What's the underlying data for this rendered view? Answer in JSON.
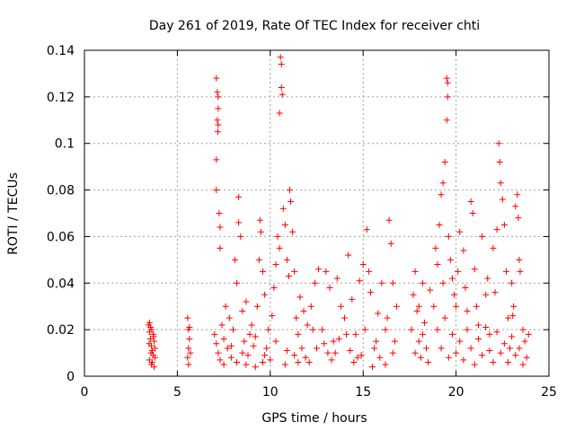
{
  "chart_data": {
    "type": "scatter",
    "title": "Day 261 of 2019, Rate Of TEC Index for receiver chti",
    "xlabel": "GPS time / hours",
    "ylabel": "ROTI / TECUs",
    "xlim": [
      0,
      25
    ],
    "ylim": [
      0,
      0.14
    ],
    "x_ticks": [
      0,
      5,
      10,
      15,
      20,
      25
    ],
    "x_tick_labels": [
      "0",
      "5",
      "10",
      "15",
      "20",
      "25"
    ],
    "y_ticks": [
      0,
      0.02,
      0.04,
      0.06,
      0.08,
      0.1,
      0.12,
      0.14
    ],
    "y_tick_labels": [
      "0",
      "0.02",
      "0.04",
      "0.06",
      "0.08",
      "0.1",
      "0.12",
      "0.14"
    ],
    "grid": true,
    "marker": "+",
    "color": "#ff0000",
    "series": [
      {
        "name": "ROTI",
        "points": [
          [
            3.45,
            0.022
          ],
          [
            3.5,
            0.019
          ],
          [
            3.55,
            0.016
          ],
          [
            3.6,
            0.013
          ],
          [
            3.65,
            0.011
          ],
          [
            3.7,
            0.009
          ],
          [
            3.5,
            0.007
          ],
          [
            3.6,
            0.005
          ],
          [
            3.55,
            0.021
          ],
          [
            3.7,
            0.018
          ],
          [
            3.75,
            0.015
          ],
          [
            3.8,
            0.012
          ],
          [
            3.8,
            0.008
          ],
          [
            3.65,
            0.006
          ],
          [
            3.75,
            0.004
          ],
          [
            3.5,
            0.023
          ],
          [
            3.62,
            0.02
          ],
          [
            3.72,
            0.017
          ],
          [
            3.48,
            0.014
          ],
          [
            3.58,
            0.01
          ],
          [
            5.55,
            0.025
          ],
          [
            5.6,
            0.02
          ],
          [
            5.65,
            0.016
          ],
          [
            5.6,
            0.012
          ],
          [
            5.55,
            0.008
          ],
          [
            5.6,
            0.005
          ],
          [
            5.65,
            0.021
          ],
          [
            5.7,
            0.01
          ],
          [
            7.1,
            0.128
          ],
          [
            7.15,
            0.122
          ],
          [
            7.2,
            0.12
          ],
          [
            7.2,
            0.115
          ],
          [
            7.15,
            0.11
          ],
          [
            7.2,
            0.108
          ],
          [
            7.18,
            0.105
          ],
          [
            7.1,
            0.093
          ],
          [
            7.1,
            0.08
          ],
          [
            7.25,
            0.07
          ],
          [
            7.3,
            0.064
          ],
          [
            7.3,
            0.055
          ],
          [
            7.0,
            0.018
          ],
          [
            7.1,
            0.014
          ],
          [
            7.2,
            0.01
          ],
          [
            7.3,
            0.007
          ],
          [
            7.4,
            0.022
          ],
          [
            7.5,
            0.016
          ],
          [
            7.6,
            0.03
          ],
          [
            7.7,
            0.012
          ],
          [
            7.8,
            0.025
          ],
          [
            7.9,
            0.008
          ],
          [
            8.0,
            0.02
          ],
          [
            8.1,
            0.05
          ],
          [
            8.2,
            0.04
          ],
          [
            8.3,
            0.077
          ],
          [
            8.3,
            0.066
          ],
          [
            8.4,
            0.06
          ],
          [
            8.5,
            0.028
          ],
          [
            8.6,
            0.015
          ],
          [
            8.7,
            0.032
          ],
          [
            8.8,
            0.009
          ],
          [
            8.9,
            0.018
          ],
          [
            9.0,
            0.022
          ],
          [
            9.1,
            0.013
          ],
          [
            9.2,
            0.017
          ],
          [
            9.3,
            0.03
          ],
          [
            9.4,
            0.05
          ],
          [
            9.45,
            0.067
          ],
          [
            9.5,
            0.062
          ],
          [
            9.6,
            0.045
          ],
          [
            9.7,
            0.035
          ],
          [
            9.8,
            0.012
          ],
          [
            9.9,
            0.02
          ],
          [
            10.0,
            0.007
          ],
          [
            10.1,
            0.026
          ],
          [
            10.2,
            0.038
          ],
          [
            10.3,
            0.048
          ],
          [
            10.4,
            0.06
          ],
          [
            10.5,
            0.055
          ],
          [
            10.55,
            0.137
          ],
          [
            10.6,
            0.134
          ],
          [
            10.6,
            0.124
          ],
          [
            10.65,
            0.121
          ],
          [
            10.5,
            0.113
          ],
          [
            10.7,
            0.072
          ],
          [
            10.8,
            0.065
          ],
          [
            10.9,
            0.05
          ],
          [
            11.0,
            0.043
          ],
          [
            11.05,
            0.08
          ],
          [
            11.1,
            0.075
          ],
          [
            11.2,
            0.062
          ],
          [
            11.3,
            0.045
          ],
          [
            11.4,
            0.025
          ],
          [
            11.5,
            0.018
          ],
          [
            11.6,
            0.034
          ],
          [
            11.7,
            0.012
          ],
          [
            11.8,
            0.028
          ],
          [
            12.0,
            0.022
          ],
          [
            12.2,
            0.03
          ],
          [
            12.4,
            0.04
          ],
          [
            12.6,
            0.046
          ],
          [
            12.8,
            0.02
          ],
          [
            13.0,
            0.045
          ],
          [
            13.2,
            0.038
          ],
          [
            13.4,
            0.015
          ],
          [
            13.6,
            0.042
          ],
          [
            13.8,
            0.03
          ],
          [
            14.0,
            0.025
          ],
          [
            14.2,
            0.052
          ],
          [
            14.4,
            0.033
          ],
          [
            14.6,
            0.018
          ],
          [
            14.8,
            0.041
          ],
          [
            15.0,
            0.048
          ],
          [
            15.2,
            0.063
          ],
          [
            15.3,
            0.045
          ],
          [
            15.4,
            0.036
          ],
          [
            15.6,
            0.012
          ],
          [
            15.8,
            0.027
          ],
          [
            16.0,
            0.04
          ],
          [
            16.2,
            0.02
          ],
          [
            16.4,
            0.067
          ],
          [
            16.5,
            0.057
          ],
          [
            16.6,
            0.04
          ],
          [
            16.7,
            0.015
          ],
          [
            16.2,
            0.005
          ],
          [
            15.9,
            0.008
          ],
          [
            14.5,
            0.006
          ],
          [
            12.1,
            0.006
          ],
          [
            13.3,
            0.007
          ],
          [
            11.9,
            0.008
          ],
          [
            10.8,
            0.005
          ],
          [
            9.6,
            0.006
          ],
          [
            8.7,
            0.005
          ],
          [
            12.5,
            0.012
          ],
          [
            13.1,
            0.01
          ],
          [
            14.9,
            0.009
          ],
          [
            15.5,
            0.004
          ],
          [
            16.8,
            0.03
          ],
          [
            11.3,
            0.009
          ],
          [
            12.9,
            0.014
          ],
          [
            13.7,
            0.016
          ],
          [
            14.3,
            0.011
          ],
          [
            15.1,
            0.02
          ],
          [
            17.6,
            0.02
          ],
          [
            17.7,
            0.035
          ],
          [
            17.8,
            0.045
          ],
          [
            17.9,
            0.028
          ],
          [
            18.0,
            0.015
          ],
          [
            18.1,
            0.008
          ],
          [
            18.2,
            0.04
          ],
          [
            18.3,
            0.023
          ],
          [
            18.4,
            0.012
          ],
          [
            18.5,
            0.006
          ],
          [
            18.6,
            0.037
          ],
          [
            17.8,
            0.01
          ],
          [
            18.2,
            0.018
          ],
          [
            18.0,
            0.03
          ],
          [
            18.9,
            0.055
          ],
          [
            19.0,
            0.048
          ],
          [
            19.1,
            0.065
          ],
          [
            19.2,
            0.078
          ],
          [
            19.3,
            0.083
          ],
          [
            19.4,
            0.092
          ],
          [
            19.5,
            0.128
          ],
          [
            19.55,
            0.126
          ],
          [
            19.5,
            0.11
          ],
          [
            19.55,
            0.12
          ],
          [
            19.6,
            0.06
          ],
          [
            19.7,
            0.05
          ],
          [
            19.8,
            0.042
          ],
          [
            19.9,
            0.035
          ],
          [
            20.0,
            0.03
          ],
          [
            20.2,
            0.062
          ],
          [
            20.4,
            0.054
          ],
          [
            20.6,
            0.028
          ],
          [
            20.8,
            0.075
          ],
          [
            20.9,
            0.07
          ],
          [
            21.0,
            0.046
          ],
          [
            21.2,
            0.022
          ],
          [
            21.4,
            0.06
          ],
          [
            21.6,
            0.035
          ],
          [
            21.8,
            0.018
          ],
          [
            22.0,
            0.055
          ],
          [
            22.2,
            0.063
          ],
          [
            22.3,
            0.1
          ],
          [
            22.35,
            0.092
          ],
          [
            22.4,
            0.083
          ],
          [
            22.5,
            0.076
          ],
          [
            22.6,
            0.065
          ],
          [
            22.7,
            0.045
          ],
          [
            22.8,
            0.025
          ],
          [
            22.9,
            0.012
          ],
          [
            23.0,
            0.04
          ],
          [
            23.1,
            0.03
          ],
          [
            23.2,
            0.073
          ],
          [
            23.3,
            0.078
          ],
          [
            23.35,
            0.068
          ],
          [
            23.4,
            0.05
          ],
          [
            23.45,
            0.045
          ],
          [
            23.6,
            0.02
          ],
          [
            23.7,
            0.015
          ],
          [
            23.8,
            0.008
          ],
          [
            23.9,
            0.018
          ],
          [
            19.0,
            0.02
          ],
          [
            19.2,
            0.012
          ],
          [
            19.4,
            0.025
          ],
          [
            19.6,
            0.008
          ],
          [
            19.8,
            0.018
          ],
          [
            20.0,
            0.01
          ],
          [
            20.2,
            0.015
          ],
          [
            20.4,
            0.007
          ],
          [
            20.6,
            0.02
          ],
          [
            20.8,
            0.012
          ],
          [
            21.0,
            0.005
          ],
          [
            21.2,
            0.016
          ],
          [
            21.4,
            0.009
          ],
          [
            21.6,
            0.021
          ],
          [
            21.8,
            0.011
          ],
          [
            22.0,
            0.006
          ],
          [
            22.2,
            0.019
          ],
          [
            22.4,
            0.01
          ],
          [
            22.6,
            0.014
          ],
          [
            22.8,
            0.006
          ],
          [
            23.0,
            0.017
          ],
          [
            23.2,
            0.009
          ],
          [
            23.4,
            0.012
          ],
          [
            23.6,
            0.005
          ],
          [
            18.8,
            0.03
          ],
          [
            19.3,
            0.04
          ],
          [
            20.1,
            0.045
          ],
          [
            20.5,
            0.038
          ],
          [
            21.1,
            0.03
          ],
          [
            21.7,
            0.042
          ],
          [
            22.1,
            0.036
          ],
          [
            23.05,
            0.026
          ],
          [
            7.5,
            0.005
          ],
          [
            7.9,
            0.013
          ],
          [
            8.2,
            0.006
          ],
          [
            8.5,
            0.01
          ],
          [
            9.2,
            0.004
          ],
          [
            9.7,
            0.009
          ],
          [
            10.3,
            0.015
          ],
          [
            10.9,
            0.011
          ],
          [
            11.5,
            0.006
          ],
          [
            12.3,
            0.02
          ],
          [
            13.5,
            0.01
          ],
          [
            14.1,
            0.018
          ],
          [
            14.7,
            0.008
          ],
          [
            15.7,
            0.015
          ],
          [
            16.3,
            0.025
          ],
          [
            16.6,
            0.01
          ]
        ]
      }
    ]
  }
}
